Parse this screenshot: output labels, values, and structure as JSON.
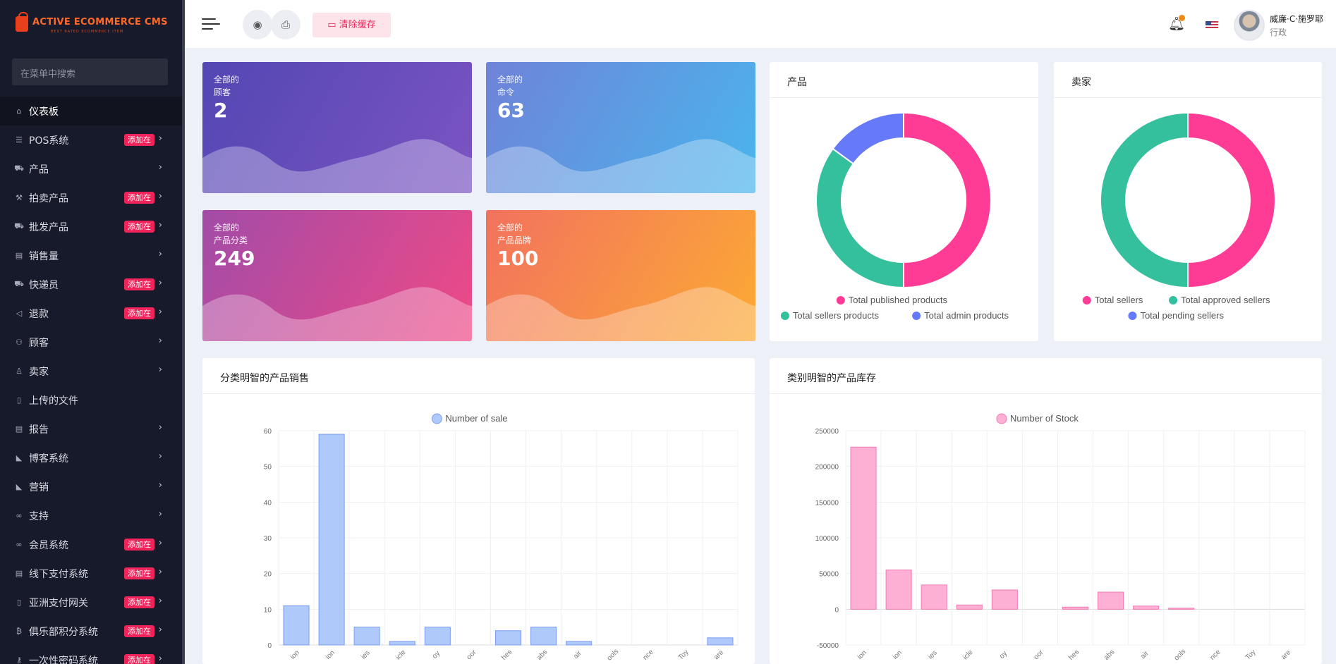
{
  "sidebar": {
    "logo_text": "ACTIVE ECOMMERCE CMS",
    "logo_subtitle": "BEST RATED ECOMMERCE ITEM",
    "search_placeholder": "在菜单中搜索",
    "badge_label": "添加在",
    "items": [
      {
        "label": "仪表板",
        "icon": "home-icon",
        "has_badge": false,
        "has_chevron": false,
        "active": true
      },
      {
        "label": "POS系统",
        "icon": "list-icon",
        "has_badge": true,
        "has_chevron": true
      },
      {
        "label": "产品",
        "icon": "cart-icon",
        "has_badge": false,
        "has_chevron": true
      },
      {
        "label": "拍卖产品",
        "icon": "gavel-icon",
        "has_badge": true,
        "has_chevron": true
      },
      {
        "label": "批发产品",
        "icon": "truck-cart-icon",
        "has_badge": true,
        "has_chevron": true
      },
      {
        "label": "销售量",
        "icon": "money-icon",
        "has_badge": false,
        "has_chevron": true
      },
      {
        "label": "快递员",
        "icon": "truck-icon",
        "has_badge": true,
        "has_chevron": true
      },
      {
        "label": "退款",
        "icon": "backward-icon",
        "has_badge": true,
        "has_chevron": true
      },
      {
        "label": "顾客",
        "icon": "users-icon",
        "has_badge": false,
        "has_chevron": true
      },
      {
        "label": "卖家",
        "icon": "user-icon",
        "has_badge": false,
        "has_chevron": true
      },
      {
        "label": "上传的文件",
        "icon": "folder-icon",
        "has_badge": false,
        "has_chevron": false
      },
      {
        "label": "报告",
        "icon": "file-icon",
        "has_badge": false,
        "has_chevron": true
      },
      {
        "label": "博客系统",
        "icon": "megaphone-icon",
        "has_badge": false,
        "has_chevron": true
      },
      {
        "label": "营销",
        "icon": "bullhorn-icon",
        "has_badge": false,
        "has_chevron": true
      },
      {
        "label": "支持",
        "icon": "link-icon",
        "has_badge": false,
        "has_chevron": true
      },
      {
        "label": "会员系统",
        "icon": "link-icon",
        "has_badge": true,
        "has_chevron": true
      },
      {
        "label": "线下支付系统",
        "icon": "money-icon",
        "has_badge": true,
        "has_chevron": true
      },
      {
        "label": "亚洲支付网关",
        "icon": "phone-icon",
        "has_badge": true,
        "has_chevron": true
      },
      {
        "label": "俱乐部积分系统",
        "icon": "bitcoin-icon",
        "has_badge": true,
        "has_chevron": true
      },
      {
        "label": "一次性密码系统",
        "icon": "key-icon",
        "has_badge": true,
        "has_chevron": true
      }
    ]
  },
  "topbar": {
    "clear_cache_label": "清除缓存",
    "user_name": "威廉·C·施罗耶",
    "user_role": "行政"
  },
  "stats": [
    {
      "line1": "全部的",
      "line2": "顾客",
      "value": "2"
    },
    {
      "line1": "全部的",
      "line2": "命令",
      "value": "63"
    },
    {
      "line1": "全部的",
      "line2": "产品分类",
      "value": "249"
    },
    {
      "line1": "全部的",
      "line2": "产品品牌",
      "value": "100"
    }
  ],
  "products_panel": {
    "title": "产品"
  },
  "sellers_panel": {
    "title": "卖家"
  },
  "sales_panel": {
    "title": "分类明智的产品销售"
  },
  "stock_panel": {
    "title": "类别明智的产品库存"
  },
  "chart_data": [
    {
      "type": "pie",
      "legend": [
        "Total published products",
        "Total sellers products",
        "Total admin products"
      ],
      "values": [
        50,
        35,
        15
      ],
      "colors": [
        "#fe3c96",
        "#34c09d",
        "#6679f9"
      ]
    },
    {
      "type": "pie",
      "legend": [
        "Total sellers",
        "Total approved sellers",
        "Total pending sellers"
      ],
      "values": [
        50,
        50,
        0
      ],
      "colors": [
        "#fe3c96",
        "#34c09d",
        "#6679f9"
      ]
    },
    {
      "type": "bar",
      "series": [
        {
          "name": "Number of sale",
          "values": [
            11,
            59,
            5,
            1,
            5,
            0,
            4,
            5,
            1,
            0,
            0,
            0,
            2
          ]
        }
      ],
      "ylim": [
        0,
        60
      ],
      "yticks": [
        0,
        10,
        20,
        30,
        40,
        50,
        60
      ],
      "xticklabels": [
        "ion",
        "ion",
        "ies",
        "icle",
        "oy",
        "oor",
        "hes",
        "abs",
        "air",
        "ools",
        "nce",
        "Toy",
        "are"
      ],
      "colors": {
        "fill": "#b0c9fb",
        "stroke": "#7c9cf0"
      }
    },
    {
      "type": "bar",
      "series": [
        {
          "name": "Number of Stock",
          "values": [
            227000,
            55000,
            34000,
            6000,
            27000,
            0,
            3000,
            24000,
            4500,
            1500,
            0,
            0,
            0
          ]
        }
      ],
      "ylim": [
        -50000,
        250000
      ],
      "yticks": [
        -50000,
        0,
        50000,
        100000,
        150000,
        200000,
        250000
      ],
      "xticklabels": [
        "ion",
        "ion",
        "ies",
        "icle",
        "oy",
        "oor",
        "hes",
        "abs",
        "air",
        "ools",
        "nce",
        "Toy",
        "are"
      ],
      "colors": {
        "fill": "#feb0d4",
        "stroke": "#f27ab5"
      }
    }
  ]
}
